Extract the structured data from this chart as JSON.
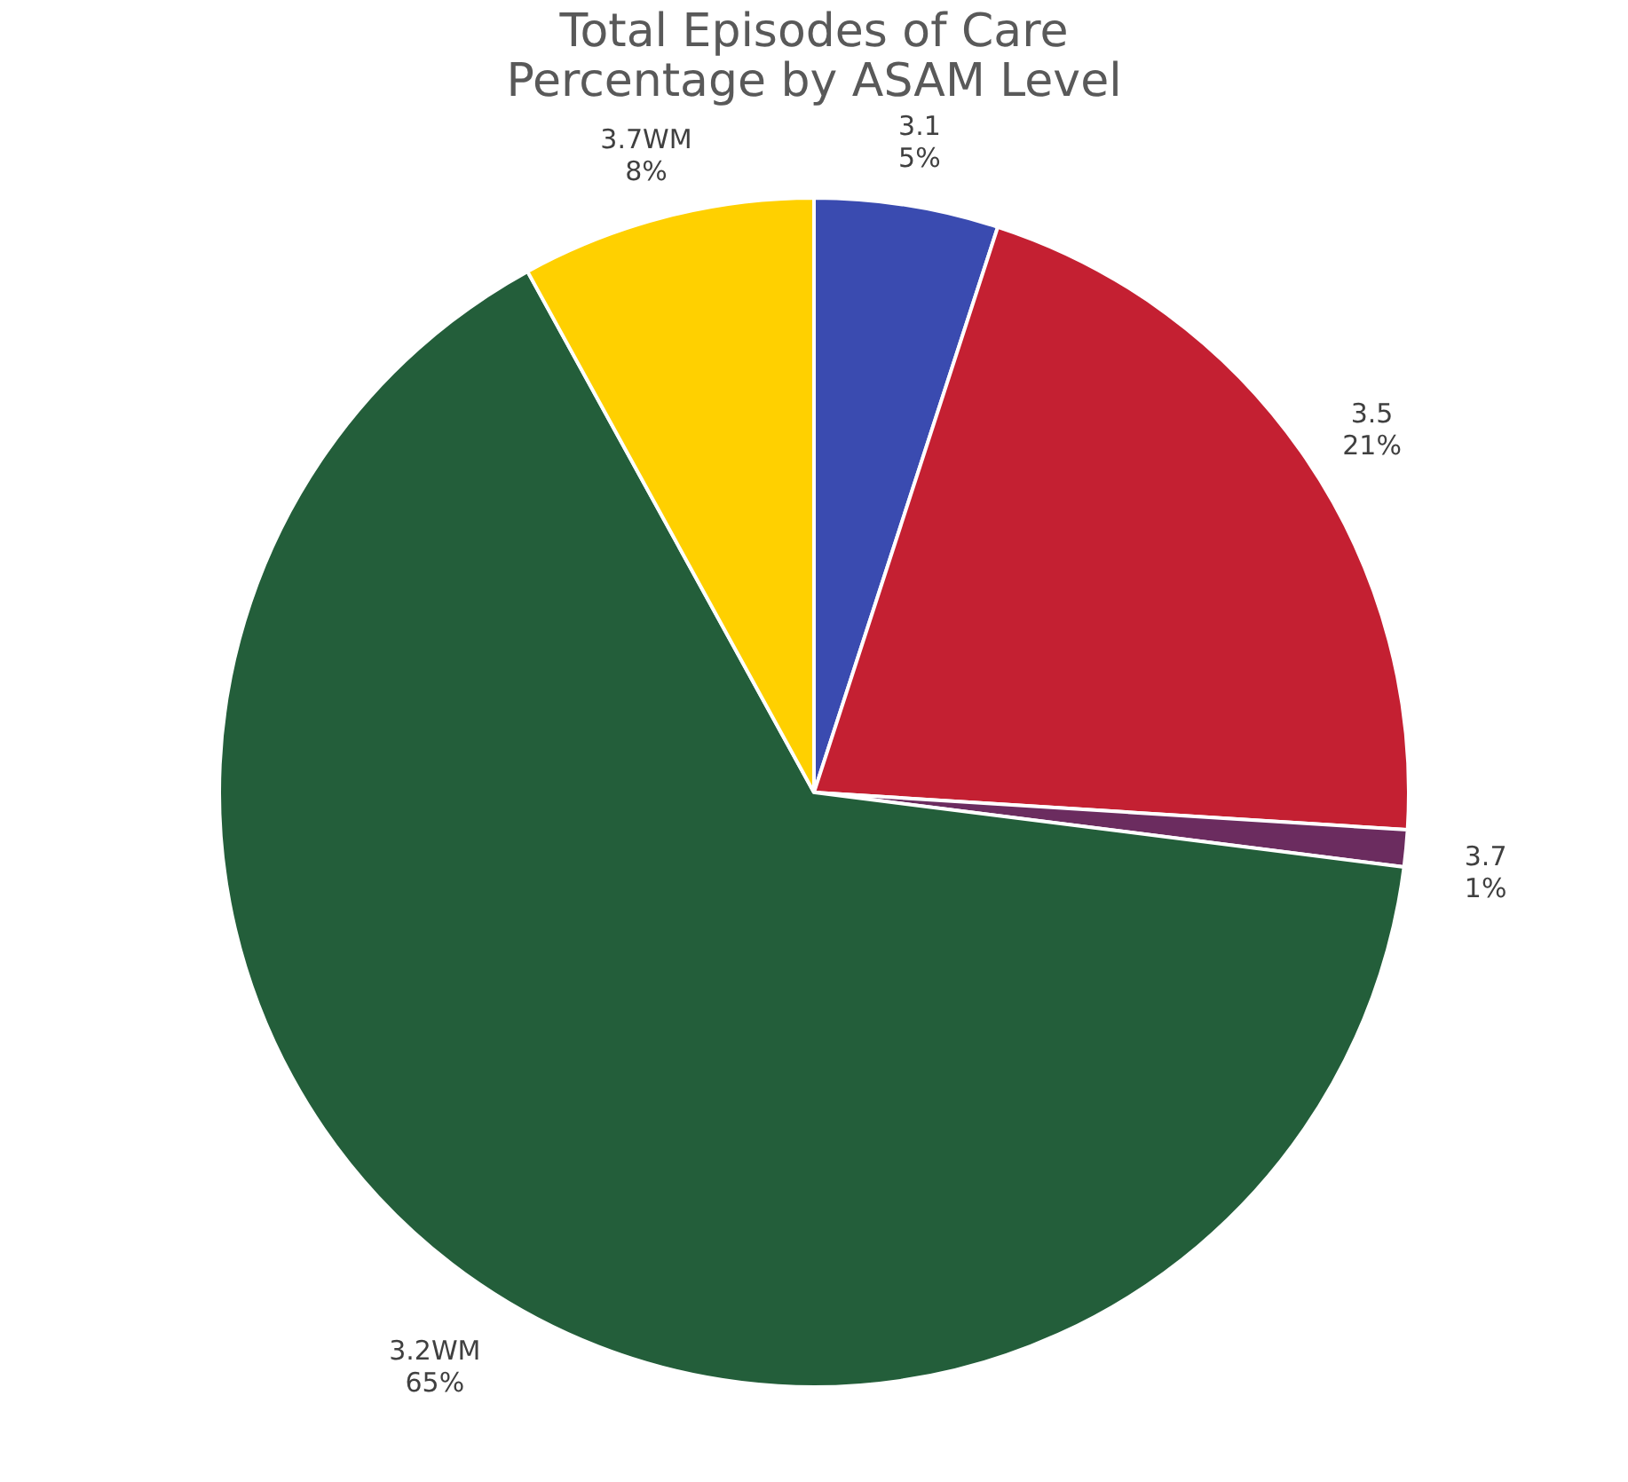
{
  "chart_data": {
    "type": "pie",
    "title": [
      "Total Episodes of Care",
      "Percentage by ASAM Level"
    ],
    "categories": [
      "3.1",
      "3.5",
      "3.7",
      "3.2WM",
      "3.7WM"
    ],
    "values": [
      5,
      21,
      1,
      65,
      8
    ],
    "value_labels": [
      "5%",
      "21%",
      "1%",
      "65%",
      "8%"
    ],
    "colors": [
      "#3a4bb0",
      "#c42032",
      "#6b2c5f",
      "#235e3a",
      "#ffd000"
    ],
    "legend": false
  }
}
